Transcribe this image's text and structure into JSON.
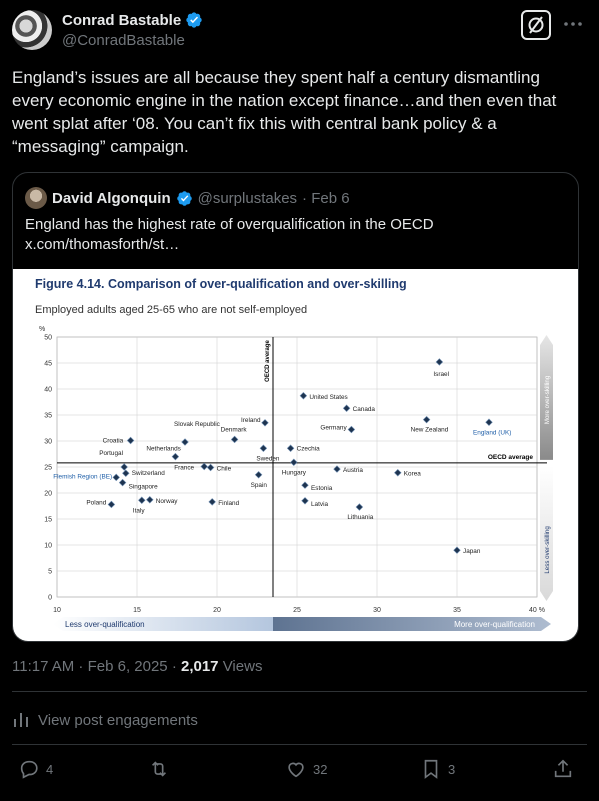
{
  "author": {
    "name": "Conrad Bastable",
    "handle": "@ConradBastable"
  },
  "tweet": {
    "lines": [
      "England’s issues are all because they spent half a century dismantling",
      "every economic engine in the nation except finance…and then even that",
      "went splat after ‘08. You can’t fix this with central bank policy & a",
      "“messaging” campaign."
    ]
  },
  "quote": {
    "name": "David Algonquin",
    "handle": "@surplustakes",
    "date": "· Feb 6",
    "line1": "England has the highest rate of overqualification in the OECD",
    "line2": "x.com/thomasforth/st…"
  },
  "chart_data": {
    "type": "scatter",
    "title": "Figure 4.14. Comparison of over-qualification and over-skilling",
    "subtitle": "Employed adults aged 25-65 who are not self-employed",
    "x_unit": "%",
    "y_unit": "%",
    "xlim": [
      10,
      40
    ],
    "ylim": [
      0,
      50
    ],
    "x_ticks": [
      "10",
      "15",
      "20",
      "25",
      "30",
      "35",
      "40 %"
    ],
    "y_ticks": [
      "0",
      "5",
      "10",
      "15",
      "20",
      "25",
      "30",
      "35",
      "40",
      "45",
      "50"
    ],
    "oecd_average_x": 23.5,
    "oecd_average_y": 25.8,
    "oecd_label_v": "OECD average",
    "oecd_label_h": "OECD average",
    "x_arrow_left": "Less over-qualification",
    "x_arrow_right": "More over-qualification",
    "y_arrow_top": "More over-skilling",
    "y_arrow_bottom": "Less over-skilling",
    "points": [
      {
        "label": "Israel",
        "x": 33.9,
        "y": 45.2
      },
      {
        "label": "United States",
        "x": 25.4,
        "y": 38.7
      },
      {
        "label": "Canada",
        "x": 28.1,
        "y": 36.3
      },
      {
        "label": "New Zealand",
        "x": 33.1,
        "y": 34.1
      },
      {
        "label": "England (UK)",
        "x": 37.0,
        "y": 33.6
      },
      {
        "label": "Germany",
        "x": 28.4,
        "y": 32.2
      },
      {
        "label": "Ireland",
        "x": 23.0,
        "y": 33.5
      },
      {
        "label": "Slovak Republic",
        "x": 18.0,
        "y": 29.8
      },
      {
        "label": "Denmark",
        "x": 21.1,
        "y": 30.3
      },
      {
        "label": "Croatia",
        "x": 14.6,
        "y": 30.1
      },
      {
        "label": "Netherlands",
        "x": 17.4,
        "y": 27.0
      },
      {
        "label": "Czechia",
        "x": 24.6,
        "y": 28.6
      },
      {
        "label": "Sweden",
        "x": 22.9,
        "y": 28.6
      },
      {
        "label": "Hungary",
        "x": 24.8,
        "y": 25.9
      },
      {
        "label": "Portugal",
        "x": 14.2,
        "y": 25.0
      },
      {
        "label": "France",
        "x": 19.2,
        "y": 25.1
      },
      {
        "label": "Chile",
        "x": 19.6,
        "y": 24.9
      },
      {
        "label": "Switzerland",
        "x": 14.3,
        "y": 23.8
      },
      {
        "label": "Austria",
        "x": 27.5,
        "y": 24.6
      },
      {
        "label": "Korea",
        "x": 31.3,
        "y": 23.9
      },
      {
        "label": "Spain",
        "x": 22.6,
        "y": 23.5
      },
      {
        "label": "Flemish Region (BE)",
        "x": 13.7,
        "y": 23.0
      },
      {
        "label": "Singapore",
        "x": 14.1,
        "y": 22.0
      },
      {
        "label": "Estonia",
        "x": 25.5,
        "y": 21.5
      },
      {
        "label": "Norway",
        "x": 15.8,
        "y": 18.7
      },
      {
        "label": "Italy",
        "x": 15.3,
        "y": 18.6
      },
      {
        "label": "Finland",
        "x": 19.7,
        "y": 18.3
      },
      {
        "label": "Latvia",
        "x": 25.5,
        "y": 18.5
      },
      {
        "label": "Poland",
        "x": 13.4,
        "y": 17.8
      },
      {
        "label": "Lithuania",
        "x": 28.9,
        "y": 17.3
      },
      {
        "label": "Japan",
        "x": 35.0,
        "y": 9.0
      }
    ]
  },
  "footer": {
    "time": "11:17 AM · Feb 6, 2025 · ",
    "views_count": "2,017",
    "views_label": " Views",
    "engagements": "View post engagements"
  },
  "actions": {
    "replies": "4",
    "reposts": "",
    "likes": "32",
    "bookmarks": "3"
  }
}
